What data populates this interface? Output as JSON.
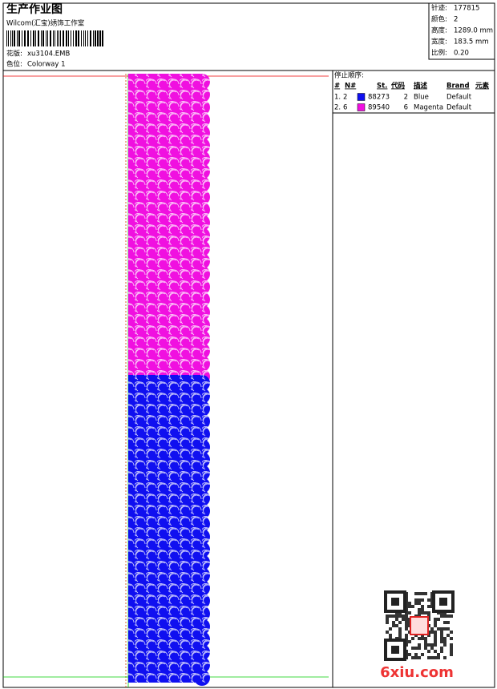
{
  "header": {
    "title": "生产作业图",
    "studio": "Wilcom(汇宝)绣饰工作室",
    "design_label": "花版:",
    "design_file": "xu3104.EMB",
    "colorway_label": "色位:",
    "colorway": "Colorway 1"
  },
  "info": [
    {
      "label": "针迹:",
      "value": "177815"
    },
    {
      "label": "颜色:",
      "value": "2"
    },
    {
      "label": "高度:",
      "value": "1289.0 mm"
    },
    {
      "label": "宽度:",
      "value": "183.5 mm"
    },
    {
      "label": "比例:",
      "value": "0.20"
    }
  ],
  "stop_table": {
    "title": "停止顺序:",
    "columns": [
      "#",
      "N#",
      "St.",
      "代码",
      "描述",
      "Brand",
      "元素"
    ],
    "rows": [
      {
        "index": "1.",
        "stop": "2",
        "color": "#1010f0",
        "code": "88273",
        "code_no": "2",
        "description": "Blue",
        "brand": "Default"
      },
      {
        "index": "2.",
        "stop": "6",
        "color": "#f010e0",
        "code": "89540",
        "code_no": "6",
        "description": "Magenta",
        "brand": "Default"
      }
    ]
  },
  "watermark": "6xiu.com"
}
